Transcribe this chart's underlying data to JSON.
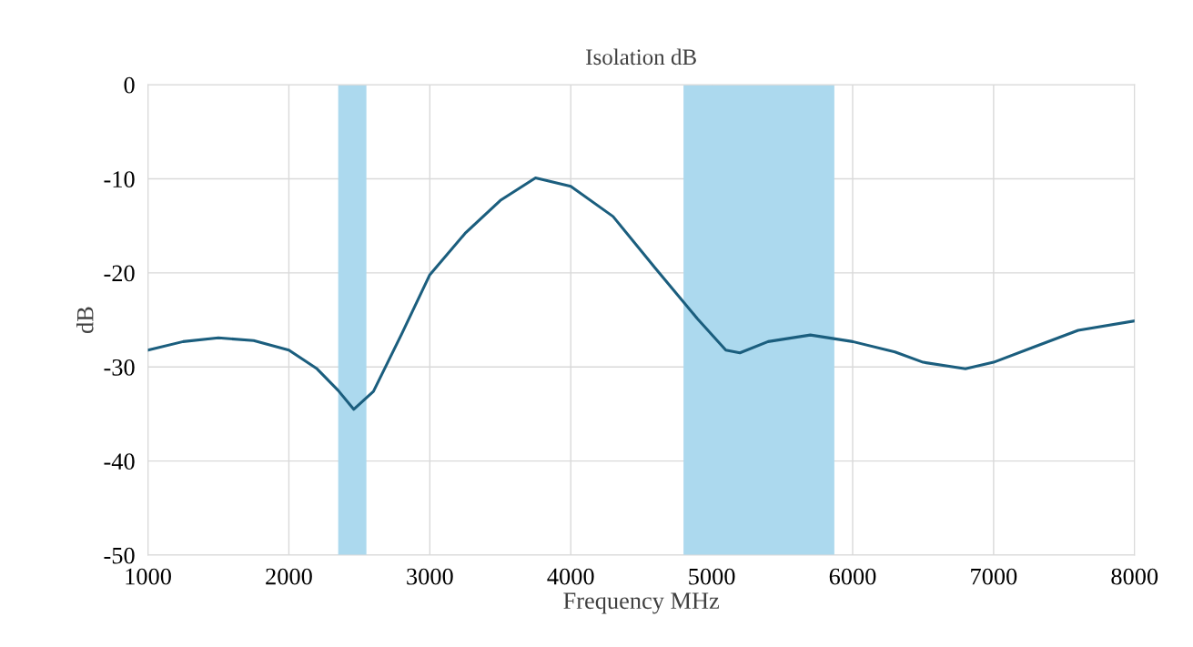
{
  "chart_data": {
    "type": "line",
    "title": "Isolation dB",
    "xlabel": "Frequency MHz",
    "ylabel": "dB",
    "x": [
      1000,
      1250,
      1500,
      1750,
      2000,
      2200,
      2350,
      2460,
      2600,
      2800,
      3000,
      3250,
      3500,
      3750,
      4000,
      4300,
      4600,
      4900,
      5100,
      5200,
      5400,
      5700,
      6000,
      6300,
      6500,
      6800,
      7000,
      7300,
      7600,
      8000
    ],
    "series": [
      {
        "color": "#1b5e7e",
        "values": [
          -28.2,
          -27.3,
          -26.9,
          -27.2,
          -28.2,
          -30.2,
          -32.5,
          -34.5,
          -32.6,
          -26.5,
          -20.2,
          -15.8,
          -12.3,
          -9.9,
          -10.8,
          -14.0,
          -19.5,
          -24.9,
          -28.2,
          -28.5,
          -27.3,
          -26.6,
          -27.3,
          -28.4,
          -29.5,
          -30.2,
          -29.5,
          -27.8,
          -26.1,
          -25.1
        ]
      }
    ],
    "bands": [
      {
        "axis": "x",
        "from": 2350,
        "to": 2550,
        "color": "#acd9ee"
      },
      {
        "axis": "x",
        "from": 4800,
        "to": 5870,
        "color": "#acd9ee"
      }
    ],
    "xlim": [
      1000,
      8000
    ],
    "xticks": [
      1000,
      2000,
      3000,
      4000,
      5000,
      6000,
      7000,
      8000
    ],
    "ylim": [
      -50,
      0
    ],
    "yticks": [
      -50,
      -40,
      -30,
      -20,
      -10,
      0
    ],
    "grid": true,
    "line_style": "solid",
    "marker": "none"
  }
}
